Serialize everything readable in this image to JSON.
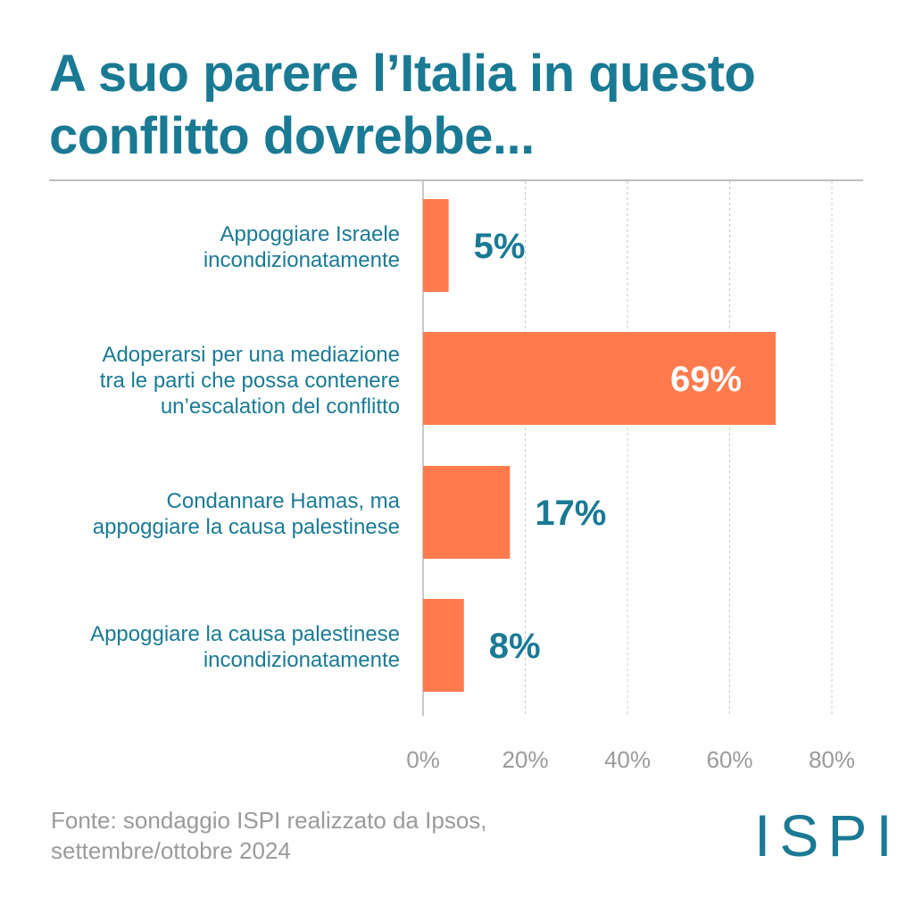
{
  "title": "A suo parere l’Italia in questo conflitto dovrebbe...",
  "source_line1": "Fonte: sondaggio ISPI realizzato da Ipsos,",
  "source_line2": "settembre/ottobre 2024",
  "logo_text": "ISPI",
  "colors": {
    "bar": "#ff7a4d",
    "accent": "#1a7a94",
    "grid": "#c8c8c8",
    "tick": "#9a9a9a"
  },
  "chart_data": {
    "type": "bar",
    "orientation": "horizontal",
    "categories": [
      "Appoggiare Israele incondizionatamente",
      "Adoperarsi per una mediazione tra le parti che possa contenere un’escalation del conflitto",
      "Condannare Hamas, ma appoggiare la causa palestinese",
      "Appoggiare la causa palestinese incondizionatamente"
    ],
    "category_lines": [
      [
        "Appoggiare Israele",
        "incondizionatamente"
      ],
      [
        "Adoperarsi per una mediazione",
        "tra le parti che possa contenere",
        "un’escalation del conflitto"
      ],
      [
        "Condannare Hamas, ma",
        "appoggiare la causa palestinese"
      ],
      [
        "Appoggiare la causa palestinese",
        "incondizionatamente"
      ]
    ],
    "values": [
      5,
      69,
      17,
      8
    ],
    "value_labels": [
      "5%",
      "69%",
      "17%",
      "8%"
    ],
    "xlim": [
      0,
      80
    ],
    "xticks": [
      0,
      20,
      40,
      60,
      80
    ],
    "xtick_labels": [
      "0%",
      "20%",
      "40%",
      "60%",
      "80%"
    ],
    "grid": true
  }
}
